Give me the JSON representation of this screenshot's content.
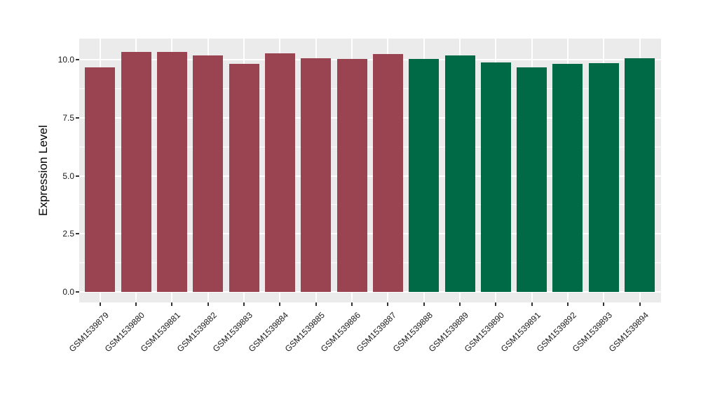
{
  "chart_data": {
    "type": "bar",
    "title": "",
    "xlabel": "",
    "ylabel": "Expression Level",
    "categories": [
      "GSM1539879",
      "GSM1539880",
      "GSM1539881",
      "GSM1539882",
      "GSM1539883",
      "GSM1539884",
      "GSM1539885",
      "GSM1539886",
      "GSM1539887",
      "GSM1539888",
      "GSM1539889",
      "GSM1539890",
      "GSM1539891",
      "GSM1539892",
      "GSM1539893",
      "GSM1539894"
    ],
    "values": [
      9.67,
      10.33,
      10.33,
      10.18,
      9.83,
      10.28,
      10.05,
      10.02,
      10.24,
      10.03,
      10.18,
      9.88,
      9.67,
      9.82,
      9.85,
      10.05
    ],
    "bar_colors": [
      "#9B4451",
      "#9B4451",
      "#9B4451",
      "#9B4451",
      "#9B4451",
      "#9B4451",
      "#9B4451",
      "#9B4451",
      "#9B4451",
      "#006946",
      "#006946",
      "#006946",
      "#006946",
      "#006946",
      "#006946",
      "#006946"
    ],
    "groups": [
      {
        "color": "#9B4451",
        "from": "GSM1539879",
        "to": "GSM1539887"
      },
      {
        "color": "#006946",
        "from": "GSM1539888",
        "to": "GSM1539894"
      }
    ],
    "yticks": [
      0.0,
      2.5,
      5.0,
      7.5,
      10.0
    ],
    "ytick_labels": [
      "0.0",
      "2.5",
      "5.0",
      "7.5",
      "10.0"
    ],
    "minor_breaks": [
      1.25,
      3.75,
      6.25,
      8.75
    ],
    "ylim": [
      -0.45,
      10.9
    ],
    "grid": true,
    "legend": "none",
    "panel_background": "#EBEBEB",
    "grid_color": "#FFFFFF",
    "tick_color": "#333333",
    "axis_text_color": "#1A1A1A"
  }
}
